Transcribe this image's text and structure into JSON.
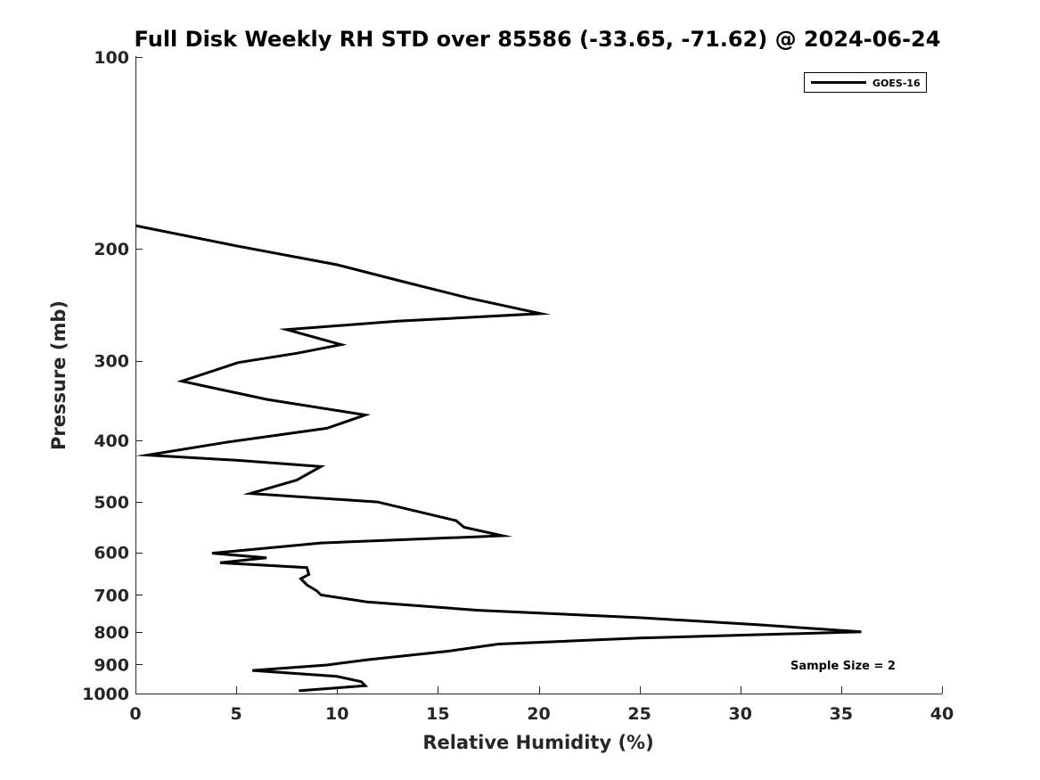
{
  "chart_data": {
    "type": "line",
    "title": "Full Disk Weekly RH STD over 85586 (-33.65, -71.62) @ 2024-06-24",
    "xlabel": "Relative Humidity (%)",
    "ylabel": "Pressure (mb)",
    "xlim": [
      0,
      40
    ],
    "ylim": [
      100,
      1000
    ],
    "y_scale": "log",
    "y_reversed": true,
    "x_ticks": [
      0,
      5,
      10,
      15,
      20,
      25,
      30,
      35,
      40
    ],
    "y_ticks": [
      100,
      200,
      300,
      400,
      500,
      600,
      700,
      800,
      900,
      1000
    ],
    "grid": false,
    "legend_position": "top-right",
    "series": [
      {
        "name": "GOES-16",
        "color": "#000000",
        "points": [
          [
            0.0,
            184
          ],
          [
            5.0,
            198
          ],
          [
            10.0,
            212
          ],
          [
            13.2,
            225
          ],
          [
            16.5,
            239
          ],
          [
            20.1,
            253
          ],
          [
            13.0,
            260
          ],
          [
            7.5,
            268
          ],
          [
            10.2,
            283
          ],
          [
            8.0,
            292
          ],
          [
            5.1,
            302
          ],
          [
            2.3,
            323
          ],
          [
            6.5,
            345
          ],
          [
            11.4,
            365
          ],
          [
            9.5,
            383
          ],
          [
            4.5,
            403
          ],
          [
            0.6,
            422
          ],
          [
            5.0,
            430
          ],
          [
            9.2,
            440
          ],
          [
            8.0,
            462
          ],
          [
            5.7,
            485
          ],
          [
            12.0,
            500
          ],
          [
            15.9,
            535
          ],
          [
            16.3,
            548
          ],
          [
            18.2,
            565
          ],
          [
            9.2,
            580
          ],
          [
            3.8,
            602
          ],
          [
            6.5,
            612
          ],
          [
            4.2,
            623
          ],
          [
            8.5,
            634
          ],
          [
            8.6,
            650
          ],
          [
            8.2,
            660
          ],
          [
            8.5,
            675
          ],
          [
            9.0,
            690
          ],
          [
            9.2,
            700
          ],
          [
            11.5,
            718
          ],
          [
            17.0,
            740
          ],
          [
            25.0,
            760
          ],
          [
            31.0,
            780
          ],
          [
            36.0,
            800
          ],
          [
            25.0,
            818
          ],
          [
            18.0,
            836
          ],
          [
            15.5,
            858
          ],
          [
            11.5,
            885
          ],
          [
            9.5,
            902
          ],
          [
            5.8,
            920
          ],
          [
            10.0,
            940
          ],
          [
            11.2,
            958
          ],
          [
            11.4,
            972
          ],
          [
            8.1,
            990
          ]
        ]
      }
    ],
    "annotations": [
      "Sample Size = 2"
    ]
  }
}
